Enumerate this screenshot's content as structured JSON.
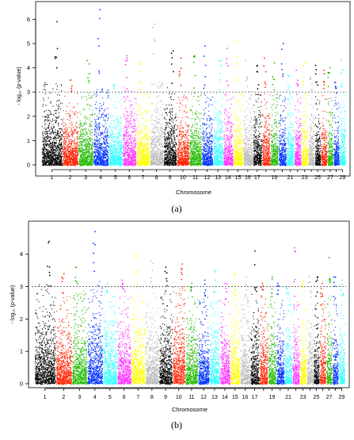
{
  "chart_data": [
    {
      "type": "scatter",
      "panel_label": "(a)",
      "xlabel": "Chromosome",
      "ylabel": "- log₁₀ (p-value)",
      "ylim": [
        0,
        6.5
      ],
      "yticks": [
        0,
        1,
        2,
        3,
        4,
        5,
        6
      ],
      "threshold": 3.0,
      "grid": false,
      "chromosomes": [
        1,
        2,
        3,
        4,
        5,
        6,
        7,
        8,
        9,
        10,
        11,
        12,
        13,
        14,
        15,
        16,
        17,
        18,
        19,
        20,
        21,
        22,
        23,
        24,
        25,
        26,
        27,
        28,
        29
      ],
      "x_tick_labels": [
        "1",
        "2",
        "3",
        "4",
        "5",
        "6",
        "7",
        "8",
        "9",
        "10",
        "11",
        "12",
        "13",
        "14",
        "15",
        "16",
        "17",
        "19",
        "21",
        "23",
        "25",
        "27",
        "29"
      ],
      "x_tick_chromosomes": [
        1,
        2,
        3,
        4,
        5,
        6,
        7,
        8,
        9,
        10,
        11,
        12,
        13,
        14,
        15,
        16,
        17,
        19,
        21,
        23,
        25,
        27,
        29
      ],
      "chromosome_lengths": [
        10,
        7.6,
        7.1,
        7.3,
        6.6,
        6.5,
        6.4,
        6.4,
        6.2,
        5.9,
        5.8,
        5.2,
        4.7,
        4.6,
        4.5,
        4.5,
        4.1,
        3.8,
        3.6,
        3.6,
        3.4,
        3.2,
        3.0,
        2.8,
        2.6,
        2.8,
        2.6,
        2.6,
        2.8
      ],
      "chromosome_colors": [
        "#000000",
        "#ff2200",
        "#22bb00",
        "#0033ff",
        "#33ffff",
        "#ff33ff",
        "#ffff00",
        "#bbbbbb",
        "#000000",
        "#ff2200",
        "#22bb00",
        "#0033ff",
        "#33ffff",
        "#ff33ff",
        "#ffff00",
        "#bbbbbb",
        "#000000",
        "#ff2200",
        "#22bb00",
        "#0033ff",
        "#33ffff",
        "#ff33ff",
        "#ffff00",
        "#bbbbbb",
        "#000000",
        "#ff2200",
        "#22bb00",
        "#0033ff",
        "#33ffff"
      ],
      "chromosome_max": [
        5.9,
        3.5,
        4.3,
        6.4,
        3.3,
        4.5,
        4.2,
        5.8,
        4.7,
        4.4,
        4.5,
        4.9,
        4.3,
        4.8,
        5.1,
        4.3,
        4.1,
        4.4,
        4.2,
        5.0,
        3.7,
        3.9,
        4.2,
        3.6,
        4.1,
        3.9,
        4.0,
        3.4,
        4.3
      ],
      "chromosome_base": [
        3.4,
        3.0,
        3.0,
        3.2,
        3.0,
        3.3,
        3.0,
        3.5,
        3.2,
        3.0,
        3.1,
        3.0,
        3.0,
        3.0,
        3.0,
        3.1,
        3.1,
        3.0,
        3.0,
        3.0,
        2.9,
        2.8,
        3.0,
        3.0,
        3.0,
        2.9,
        2.9,
        2.8,
        3.0
      ]
    },
    {
      "type": "scatter",
      "panel_label": "(b)",
      "xlabel": "Chromosome",
      "ylabel": "- log₁₀ (p-value)",
      "ylim": [
        0,
        4.9
      ],
      "yticks": [
        0,
        1,
        2,
        3,
        4
      ],
      "threshold": 3.0,
      "grid": false,
      "chromosomes": [
        1,
        2,
        3,
        4,
        5,
        6,
        7,
        8,
        9,
        10,
        11,
        12,
        13,
        14,
        15,
        16,
        17,
        18,
        19,
        20,
        21,
        22,
        23,
        24,
        25,
        26,
        27,
        28,
        29
      ],
      "x_tick_labels": [
        "1",
        "2",
        "3",
        "4",
        "5",
        "6",
        "7",
        "8",
        "9",
        "10",
        "11",
        "12",
        "13",
        "14",
        "15",
        "16",
        "17",
        "19",
        "21",
        "23",
        "25",
        "27",
        "29"
      ],
      "x_tick_chromosomes": [
        1,
        2,
        3,
        4,
        5,
        6,
        7,
        8,
        9,
        10,
        11,
        12,
        13,
        14,
        15,
        16,
        17,
        19,
        21,
        23,
        25,
        27,
        29
      ],
      "chromosome_lengths": [
        10,
        7.6,
        7.1,
        7.3,
        6.6,
        6.5,
        6.4,
        6.4,
        6.2,
        5.9,
        5.8,
        5.2,
        4.7,
        4.6,
        4.5,
        4.5,
        4.1,
        3.8,
        3.6,
        3.6,
        3.4,
        3.2,
        3.0,
        2.8,
        2.6,
        2.8,
        2.6,
        2.6,
        2.8
      ],
      "chromosome_colors": [
        "#000000",
        "#ff2200",
        "#22bb00",
        "#0033ff",
        "#33ffff",
        "#ff33ff",
        "#ffff00",
        "#bbbbbb",
        "#000000",
        "#ff2200",
        "#22bb00",
        "#0033ff",
        "#33ffff",
        "#ff33ff",
        "#ffff00",
        "#bbbbbb",
        "#000000",
        "#ff2200",
        "#22bb00",
        "#0033ff",
        "#33ffff",
        "#ff33ff",
        "#ffff00",
        "#bbbbbb",
        "#000000",
        "#ff2200",
        "#22bb00",
        "#0033ff",
        "#33ffff"
      ],
      "chromosome_max": [
        4.4,
        3.4,
        3.6,
        4.7,
        3.1,
        3.2,
        4.0,
        3.8,
        3.6,
        3.7,
        3.1,
        3.2,
        3.5,
        3.1,
        3.4,
        3.3,
        4.1,
        3.1,
        3.3,
        3.1,
        3.0,
        4.2,
        3.2,
        3.3,
        3.3,
        3.1,
        3.9,
        3.3,
        3.2
      ],
      "chromosome_base": [
        3.1,
        2.8,
        2.9,
        3.2,
        2.8,
        2.9,
        2.7,
        2.8,
        2.9,
        3.0,
        2.8,
        2.7,
        2.7,
        2.6,
        2.8,
        2.7,
        2.8,
        2.7,
        2.7,
        2.6,
        2.7,
        2.6,
        2.7,
        2.6,
        2.6,
        2.6,
        2.7,
        2.6,
        2.6
      ]
    }
  ]
}
